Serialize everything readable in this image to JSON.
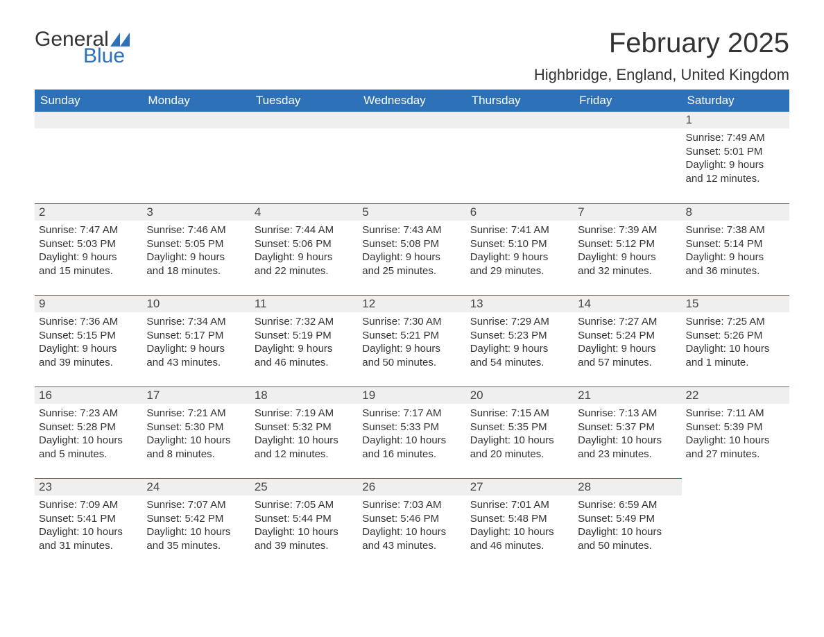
{
  "logo": {
    "text1": "General",
    "text2": "Blue",
    "icon_color": "#2d72b8"
  },
  "title": "February 2025",
  "location": "Highbridge, England, United Kingdom",
  "colors": {
    "header_bg": "#2d72b8",
    "header_fg": "#ffffff",
    "daynum_bg": "#efefef",
    "rule": "#2d72b8",
    "text": "#333333"
  },
  "typography": {
    "title_fontsize": 40,
    "location_fontsize": 22,
    "header_fontsize": 17,
    "daynum_fontsize": 17,
    "body_fontsize": 15
  },
  "day_headers": [
    "Sunday",
    "Monday",
    "Tuesday",
    "Wednesday",
    "Thursday",
    "Friday",
    "Saturday"
  ],
  "weeks": [
    [
      null,
      null,
      null,
      null,
      null,
      null,
      {
        "n": "1",
        "sunrise": "Sunrise: 7:49 AM",
        "sunset": "Sunset: 5:01 PM",
        "day1": "Daylight: 9 hours",
        "day2": "and 12 minutes."
      }
    ],
    [
      {
        "n": "2",
        "sunrise": "Sunrise: 7:47 AM",
        "sunset": "Sunset: 5:03 PM",
        "day1": "Daylight: 9 hours",
        "day2": "and 15 minutes."
      },
      {
        "n": "3",
        "sunrise": "Sunrise: 7:46 AM",
        "sunset": "Sunset: 5:05 PM",
        "day1": "Daylight: 9 hours",
        "day2": "and 18 minutes."
      },
      {
        "n": "4",
        "sunrise": "Sunrise: 7:44 AM",
        "sunset": "Sunset: 5:06 PM",
        "day1": "Daylight: 9 hours",
        "day2": "and 22 minutes."
      },
      {
        "n": "5",
        "sunrise": "Sunrise: 7:43 AM",
        "sunset": "Sunset: 5:08 PM",
        "day1": "Daylight: 9 hours",
        "day2": "and 25 minutes."
      },
      {
        "n": "6",
        "sunrise": "Sunrise: 7:41 AM",
        "sunset": "Sunset: 5:10 PM",
        "day1": "Daylight: 9 hours",
        "day2": "and 29 minutes."
      },
      {
        "n": "7",
        "sunrise": "Sunrise: 7:39 AM",
        "sunset": "Sunset: 5:12 PM",
        "day1": "Daylight: 9 hours",
        "day2": "and 32 minutes."
      },
      {
        "n": "8",
        "sunrise": "Sunrise: 7:38 AM",
        "sunset": "Sunset: 5:14 PM",
        "day1": "Daylight: 9 hours",
        "day2": "and 36 minutes."
      }
    ],
    [
      {
        "n": "9",
        "sunrise": "Sunrise: 7:36 AM",
        "sunset": "Sunset: 5:15 PM",
        "day1": "Daylight: 9 hours",
        "day2": "and 39 minutes."
      },
      {
        "n": "10",
        "sunrise": "Sunrise: 7:34 AM",
        "sunset": "Sunset: 5:17 PM",
        "day1": "Daylight: 9 hours",
        "day2": "and 43 minutes."
      },
      {
        "n": "11",
        "sunrise": "Sunrise: 7:32 AM",
        "sunset": "Sunset: 5:19 PM",
        "day1": "Daylight: 9 hours",
        "day2": "and 46 minutes."
      },
      {
        "n": "12",
        "sunrise": "Sunrise: 7:30 AM",
        "sunset": "Sunset: 5:21 PM",
        "day1": "Daylight: 9 hours",
        "day2": "and 50 minutes."
      },
      {
        "n": "13",
        "sunrise": "Sunrise: 7:29 AM",
        "sunset": "Sunset: 5:23 PM",
        "day1": "Daylight: 9 hours",
        "day2": "and 54 minutes."
      },
      {
        "n": "14",
        "sunrise": "Sunrise: 7:27 AM",
        "sunset": "Sunset: 5:24 PM",
        "day1": "Daylight: 9 hours",
        "day2": "and 57 minutes."
      },
      {
        "n": "15",
        "sunrise": "Sunrise: 7:25 AM",
        "sunset": "Sunset: 5:26 PM",
        "day1": "Daylight: 10 hours",
        "day2": "and 1 minute."
      }
    ],
    [
      {
        "n": "16",
        "sunrise": "Sunrise: 7:23 AM",
        "sunset": "Sunset: 5:28 PM",
        "day1": "Daylight: 10 hours",
        "day2": "and 5 minutes."
      },
      {
        "n": "17",
        "sunrise": "Sunrise: 7:21 AM",
        "sunset": "Sunset: 5:30 PM",
        "day1": "Daylight: 10 hours",
        "day2": "and 8 minutes."
      },
      {
        "n": "18",
        "sunrise": "Sunrise: 7:19 AM",
        "sunset": "Sunset: 5:32 PM",
        "day1": "Daylight: 10 hours",
        "day2": "and 12 minutes."
      },
      {
        "n": "19",
        "sunrise": "Sunrise: 7:17 AM",
        "sunset": "Sunset: 5:33 PM",
        "day1": "Daylight: 10 hours",
        "day2": "and 16 minutes."
      },
      {
        "n": "20",
        "sunrise": "Sunrise: 7:15 AM",
        "sunset": "Sunset: 5:35 PM",
        "day1": "Daylight: 10 hours",
        "day2": "and 20 minutes."
      },
      {
        "n": "21",
        "sunrise": "Sunrise: 7:13 AM",
        "sunset": "Sunset: 5:37 PM",
        "day1": "Daylight: 10 hours",
        "day2": "and 23 minutes."
      },
      {
        "n": "22",
        "sunrise": "Sunrise: 7:11 AM",
        "sunset": "Sunset: 5:39 PM",
        "day1": "Daylight: 10 hours",
        "day2": "and 27 minutes."
      }
    ],
    [
      {
        "n": "23",
        "sunrise": "Sunrise: 7:09 AM",
        "sunset": "Sunset: 5:41 PM",
        "day1": "Daylight: 10 hours",
        "day2": "and 31 minutes."
      },
      {
        "n": "24",
        "sunrise": "Sunrise: 7:07 AM",
        "sunset": "Sunset: 5:42 PM",
        "day1": "Daylight: 10 hours",
        "day2": "and 35 minutes."
      },
      {
        "n": "25",
        "sunrise": "Sunrise: 7:05 AM",
        "sunset": "Sunset: 5:44 PM",
        "day1": "Daylight: 10 hours",
        "day2": "and 39 minutes."
      },
      {
        "n": "26",
        "sunrise": "Sunrise: 7:03 AM",
        "sunset": "Sunset: 5:46 PM",
        "day1": "Daylight: 10 hours",
        "day2": "and 43 minutes."
      },
      {
        "n": "27",
        "sunrise": "Sunrise: 7:01 AM",
        "sunset": "Sunset: 5:48 PM",
        "day1": "Daylight: 10 hours",
        "day2": "and 46 minutes."
      },
      {
        "n": "28",
        "sunrise": "Sunrise: 6:59 AM",
        "sunset": "Sunset: 5:49 PM",
        "day1": "Daylight: 10 hours",
        "day2": "and 50 minutes."
      },
      null
    ]
  ]
}
